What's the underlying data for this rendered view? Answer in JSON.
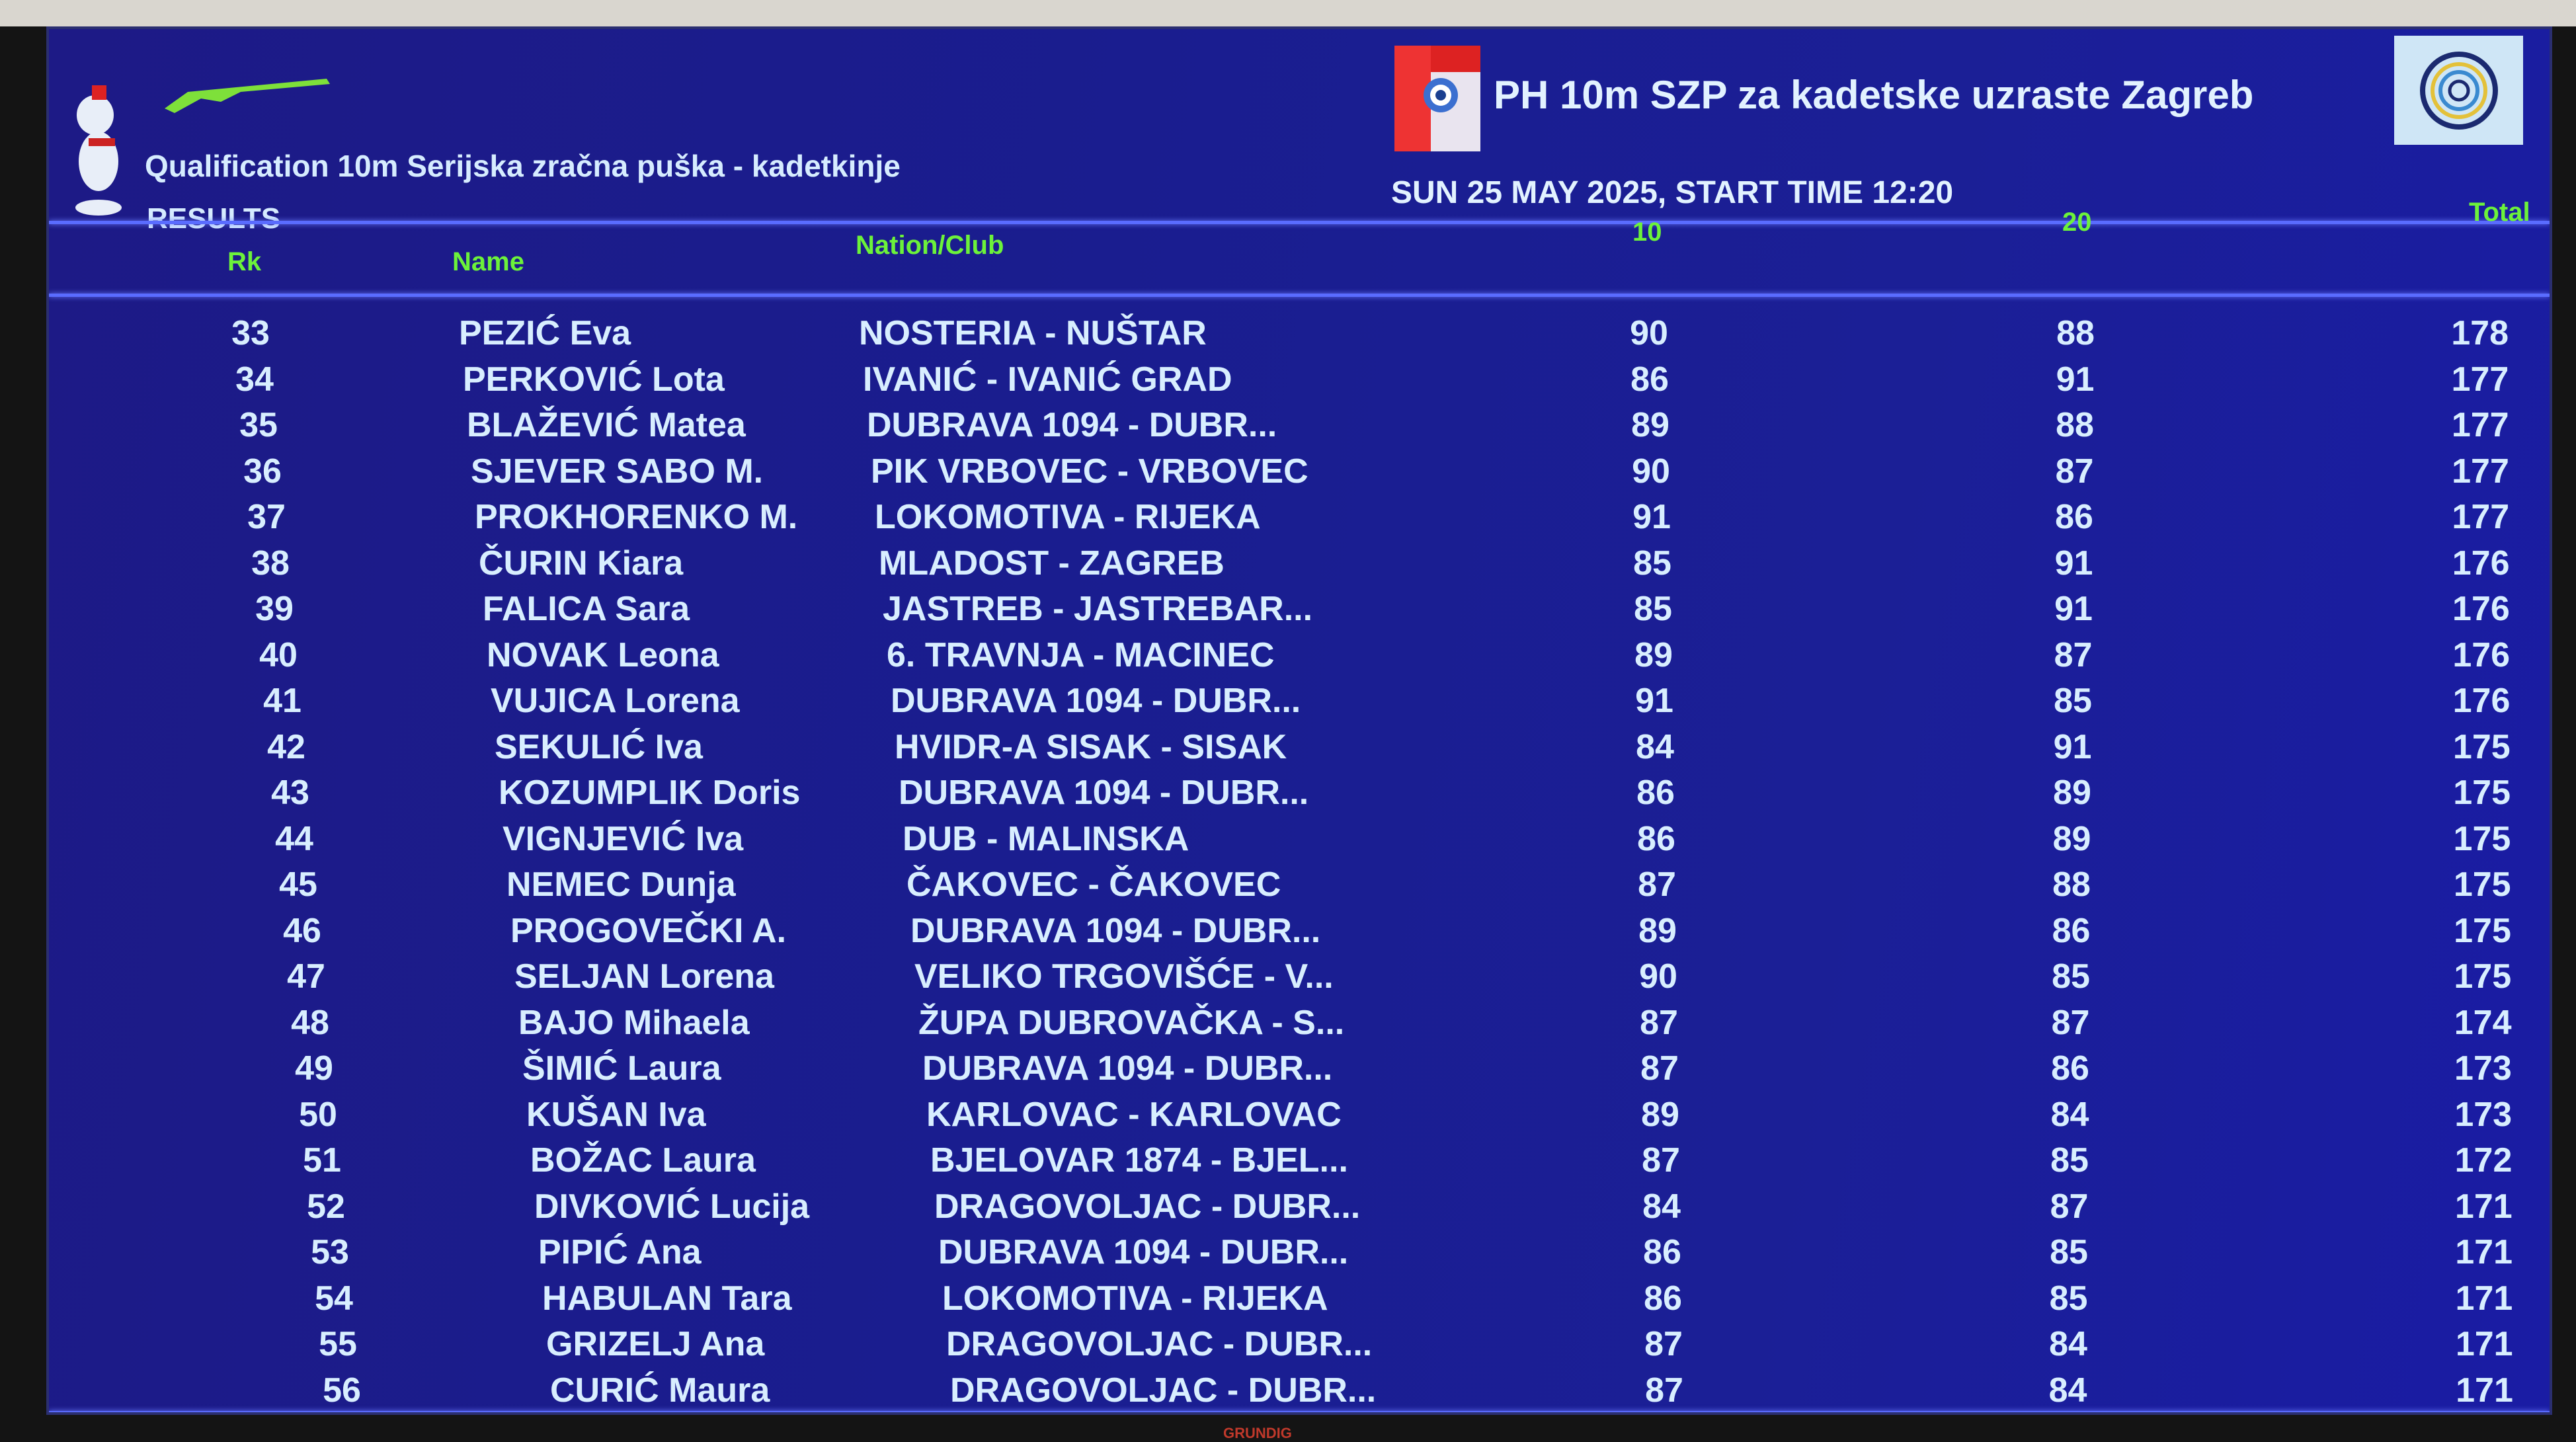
{
  "header": {
    "event_title": "PH 10m SZP za kadetske uzraste Zagreb",
    "subtitle": "Qualification 10m Serijska zračna puška - kadetkinje",
    "section": "RESULTS",
    "date_time": "SUN 25 MAY 2025, START TIME 12:20"
  },
  "columns": {
    "rank": "Rk",
    "name": "Name",
    "club": "Nation/Club",
    "s1": "10",
    "s2": "20",
    "total": "Total"
  },
  "colors": {
    "background": "#1b1d92",
    "text": "#d8eeff",
    "header_text": "#6cf23a",
    "divider": "#5a6cff"
  },
  "rows": [
    {
      "rk": "33",
      "name": "PEZIĆ Eva",
      "club": "NOSTERIA - NUŠTAR",
      "s1": "90",
      "s2": "88",
      "total": "178"
    },
    {
      "rk": "34",
      "name": "PERKOVIĆ Lota",
      "club": "IVANIĆ - IVANIĆ GRAD",
      "s1": "86",
      "s2": "91",
      "total": "177"
    },
    {
      "rk": "35",
      "name": "BLAŽEVIĆ Matea",
      "club": "DUBRAVA 1094 - DUBR...",
      "s1": "89",
      "s2": "88",
      "total": "177"
    },
    {
      "rk": "36",
      "name": "SJEVER SABO M.",
      "club": "PIK VRBOVEC - VRBOVEC",
      "s1": "90",
      "s2": "87",
      "total": "177"
    },
    {
      "rk": "37",
      "name": "PROKHORENKO M.",
      "club": "LOKOMOTIVA - RIJEKA",
      "s1": "91",
      "s2": "86",
      "total": "177"
    },
    {
      "rk": "38",
      "name": "ČURIN Kiara",
      "club": "MLADOST - ZAGREB",
      "s1": "85",
      "s2": "91",
      "total": "176"
    },
    {
      "rk": "39",
      "name": "FALICA Sara",
      "club": "JASTREB - JASTREBAR...",
      "s1": "85",
      "s2": "91",
      "total": "176"
    },
    {
      "rk": "40",
      "name": "NOVAK Leona",
      "club": "6. TRAVNJA - MACINEC",
      "s1": "89",
      "s2": "87",
      "total": "176"
    },
    {
      "rk": "41",
      "name": "VUJICA Lorena",
      "club": "DUBRAVA 1094 - DUBR...",
      "s1": "91",
      "s2": "85",
      "total": "176"
    },
    {
      "rk": "42",
      "name": "SEKULIĆ Iva",
      "club": "HVIDR-A SISAK - SISAK",
      "s1": "84",
      "s2": "91",
      "total": "175"
    },
    {
      "rk": "43",
      "name": "KOZUMPLIK Doris",
      "club": "DUBRAVA 1094 - DUBR...",
      "s1": "86",
      "s2": "89",
      "total": "175"
    },
    {
      "rk": "44",
      "name": "VIGNJEVIĆ Iva",
      "club": "DUB - MALINSKA",
      "s1": "86",
      "s2": "89",
      "total": "175"
    },
    {
      "rk": "45",
      "name": "NEMEC Dunja",
      "club": "ČAKOVEC - ČAKOVEC",
      "s1": "87",
      "s2": "88",
      "total": "175"
    },
    {
      "rk": "46",
      "name": "PROGOVEČKI A.",
      "club": "DUBRAVA 1094 - DUBR...",
      "s1": "89",
      "s2": "86",
      "total": "175"
    },
    {
      "rk": "47",
      "name": "SELJAN Lorena",
      "club": "VELIKO TRGOVIŠĆE - V...",
      "s1": "90",
      "s2": "85",
      "total": "175"
    },
    {
      "rk": "48",
      "name": "BAJO Mihaela",
      "club": "ŽUPA DUBROVAČKA - S...",
      "s1": "87",
      "s2": "87",
      "total": "174"
    },
    {
      "rk": "49",
      "name": "ŠIMIĆ Laura",
      "club": "DUBRAVA 1094 - DUBR...",
      "s1": "87",
      "s2": "86",
      "total": "173"
    },
    {
      "rk": "50",
      "name": "KUŠAN Iva",
      "club": "KARLOVAC - KARLOVAC",
      "s1": "89",
      "s2": "84",
      "total": "173"
    },
    {
      "rk": "51",
      "name": "BOŽAC Laura",
      "club": "BJELOVAR 1874 - BJEL...",
      "s1": "87",
      "s2": "85",
      "total": "172"
    },
    {
      "rk": "52",
      "name": "DIVKOVIĆ Lucija",
      "club": "DRAGOVOLJAC - DUBR...",
      "s1": "84",
      "s2": "87",
      "total": "171"
    },
    {
      "rk": "53",
      "name": "PIPIĆ Ana",
      "club": "DUBRAVA 1094 - DUBR...",
      "s1": "86",
      "s2": "85",
      "total": "171"
    },
    {
      "rk": "54",
      "name": "HABULAN Tara",
      "club": "LOKOMOTIVA - RIJEKA",
      "s1": "86",
      "s2": "85",
      "total": "171"
    },
    {
      "rk": "55",
      "name": "GRIZELJ Ana",
      "club": "DRAGOVOLJAC - DUBR...",
      "s1": "87",
      "s2": "84",
      "total": "171"
    },
    {
      "rk": "56",
      "name": "CURIĆ Maura",
      "club": "DRAGOVOLJAC - DUBR...",
      "s1": "87",
      "s2": "84",
      "total": "171"
    }
  ],
  "tv_brand": "GRUNDIG"
}
